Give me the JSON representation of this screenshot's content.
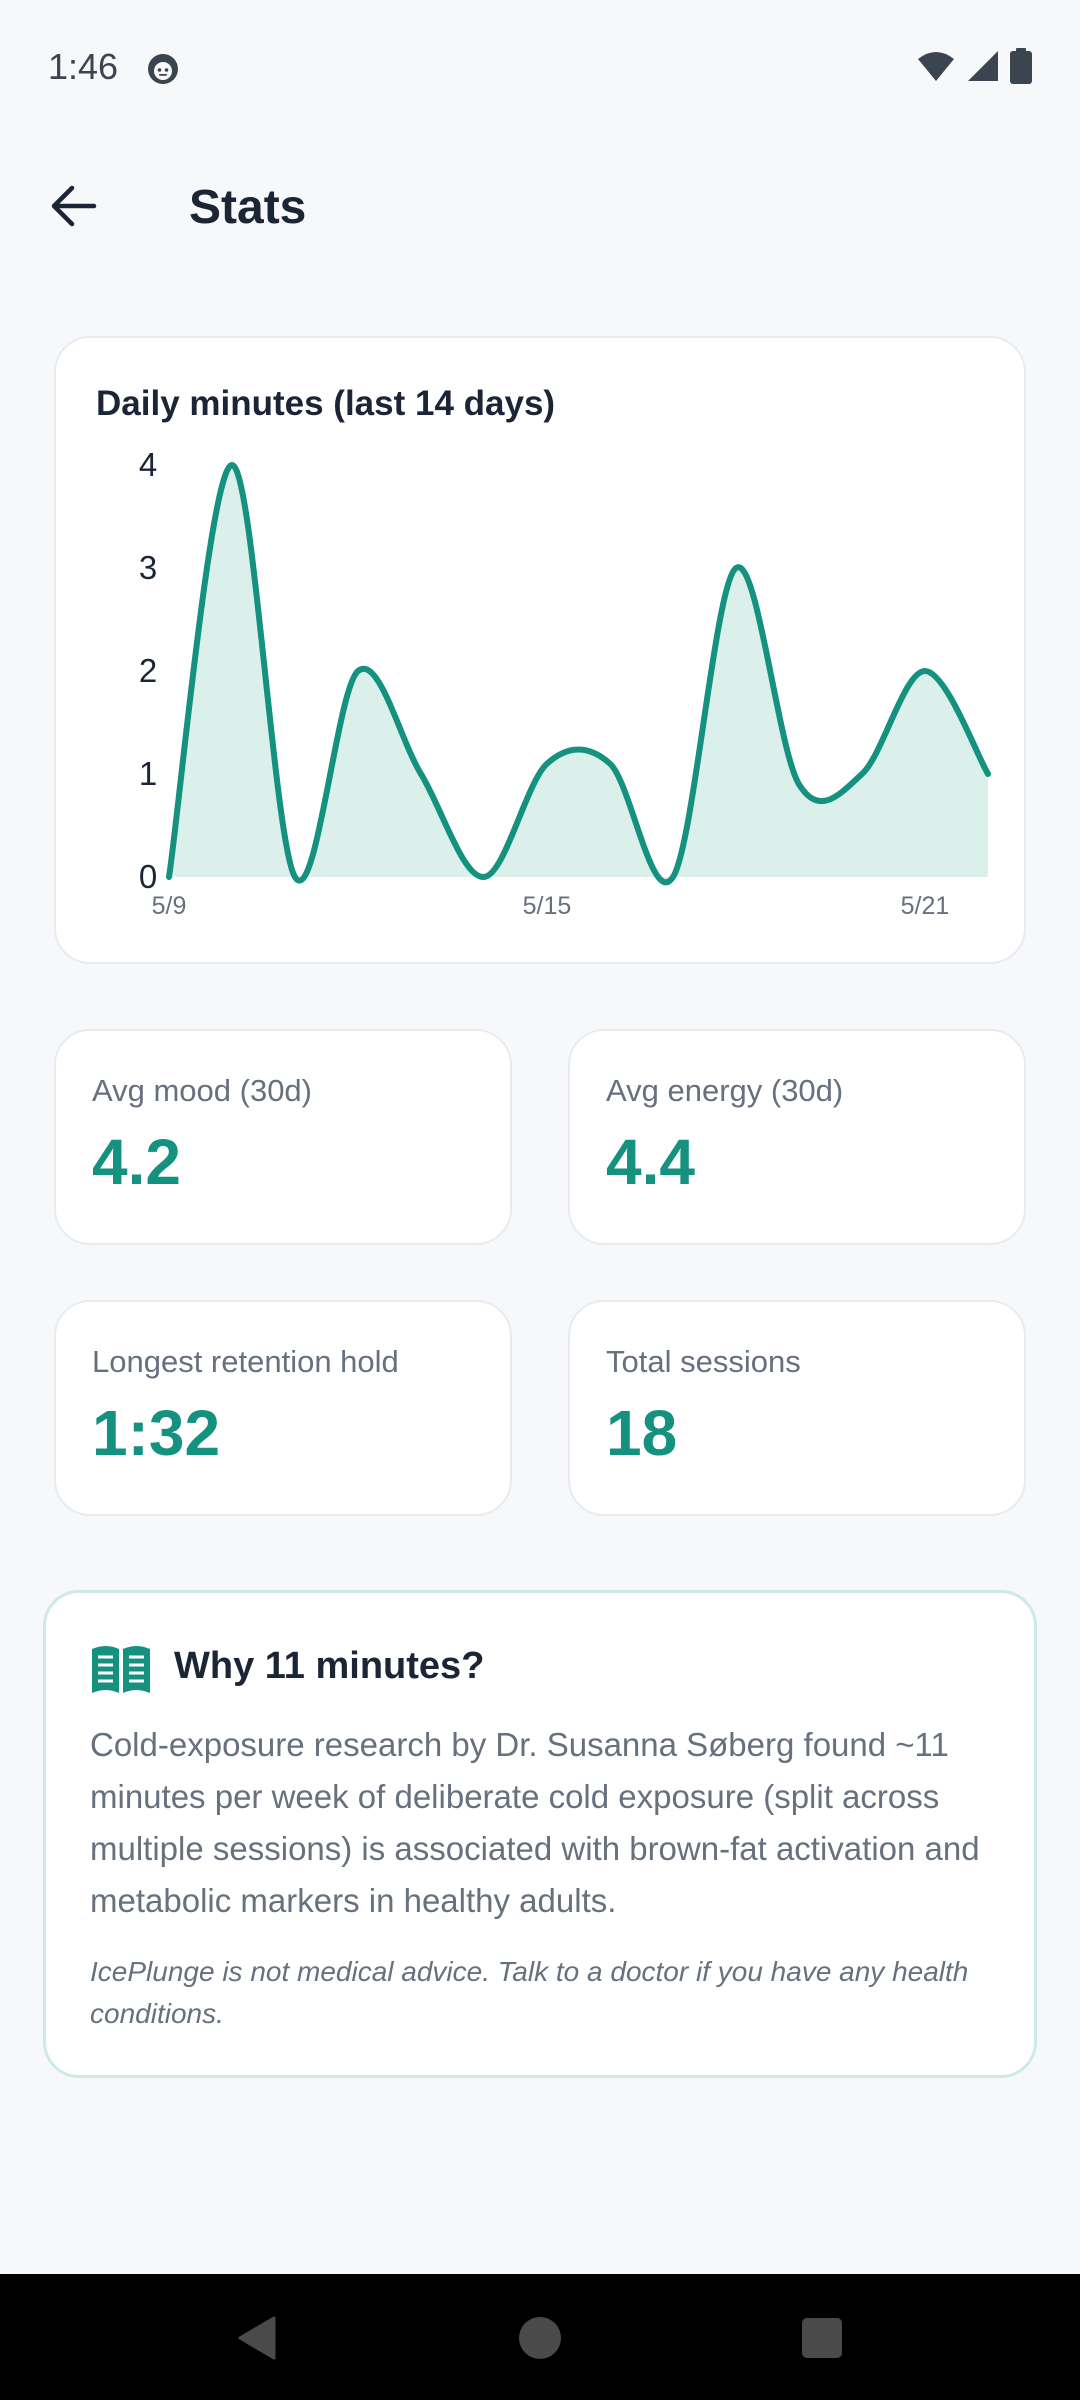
{
  "status_bar": {
    "time": "1:46",
    "app_icon": "notification-face-icon",
    "icons": [
      "wifi-icon",
      "signal-icon",
      "battery-icon"
    ]
  },
  "app_bar": {
    "back_icon": "back-arrow-icon",
    "title": "Stats"
  },
  "chart_card": {
    "title": "Daily minutes (last 14 days)"
  },
  "chart_data": {
    "type": "area",
    "title": "Daily minutes (last 14 days)",
    "xlabel": "",
    "ylabel": "",
    "x": [
      "5/9",
      "5/10",
      "5/11",
      "5/12",
      "5/13",
      "5/14",
      "5/15",
      "5/16",
      "5/17",
      "5/18",
      "5/19",
      "5/20",
      "5/21",
      "5/22"
    ],
    "x_tick_labels": [
      "5/9",
      "5/15",
      "5/21"
    ],
    "y_ticks": [
      0,
      1,
      2,
      3,
      4
    ],
    "ylim": [
      0,
      4
    ],
    "values": [
      0,
      4,
      0,
      2,
      1,
      0,
      1.1,
      1.1,
      0,
      3,
      0.9,
      1,
      2,
      1
    ],
    "grid": false,
    "colors": {
      "line": "#14917f",
      "fill": "#dbefeb"
    }
  },
  "stats": [
    {
      "label": "Avg mood (30d)",
      "value": "4.2"
    },
    {
      "label": "Avg energy (30d)",
      "value": "4.4"
    },
    {
      "label": "Longest retention hold",
      "value": "1:32"
    },
    {
      "label": "Total sessions",
      "value": "18"
    }
  ],
  "info": {
    "icon": "open-book-icon",
    "title": "Why 11 minutes?",
    "body": "Cold-exposure research by Dr. Susanna Søberg found ~11 minutes per week of deliberate cold exposure (split across multiple sessions) is associated with brown-fat activation and metabolic markers in healthy adults.",
    "note": "IcePlunge is not medical advice. Talk to a doctor if you have any health conditions."
  },
  "nav_bar": {
    "icons": [
      "nav-back-icon",
      "nav-home-icon",
      "nav-recents-icon"
    ]
  },
  "colors": {
    "accent": "#14917f",
    "background": "#f6f8fa",
    "muted_text": "#67707d"
  }
}
